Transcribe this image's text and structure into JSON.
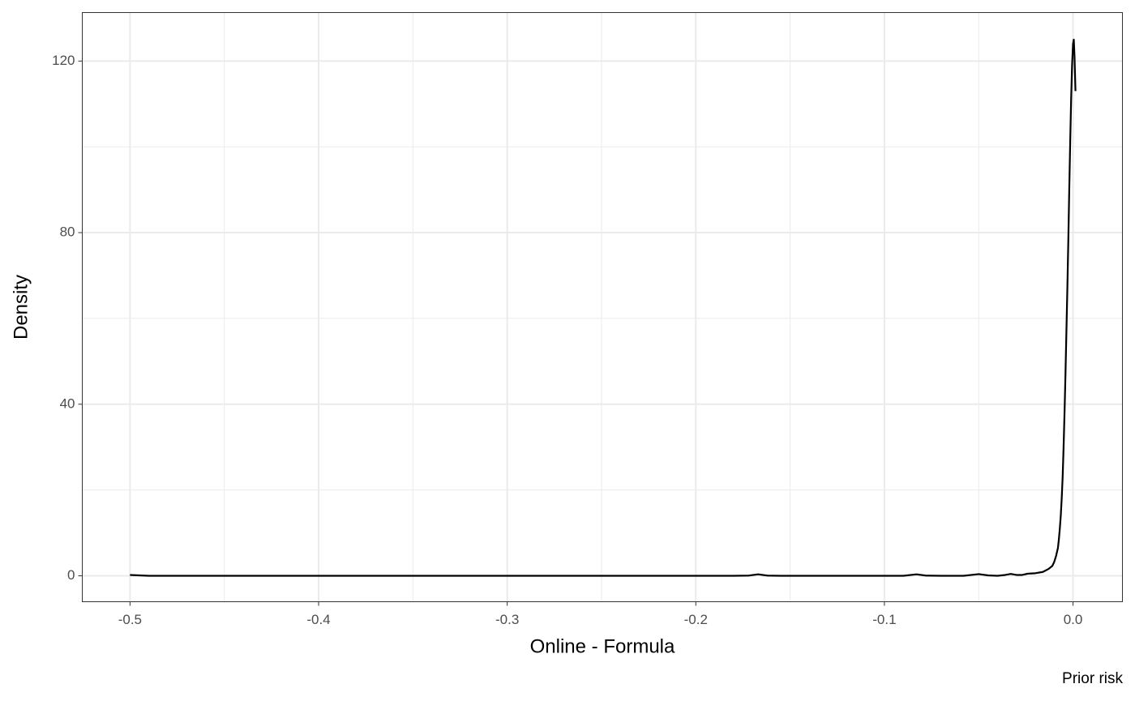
{
  "chart_data": {
    "type": "line",
    "x_label": "Online - Formula",
    "y_label": "Density",
    "caption": "Prior risk",
    "x": [
      -0.5,
      -0.49,
      -0.3,
      -0.18,
      -0.172,
      -0.167,
      -0.162,
      -0.155,
      -0.09,
      -0.088,
      -0.083,
      -0.078,
      -0.07,
      -0.058,
      -0.05,
      -0.045,
      -0.04,
      -0.036,
      -0.033,
      -0.03,
      -0.027,
      -0.024,
      -0.02,
      -0.016,
      -0.013,
      -0.011,
      -0.01,
      -0.009,
      -0.008,
      -0.0075,
      -0.007,
      -0.0065,
      -0.006,
      -0.0055,
      -0.005,
      -0.0045,
      -0.004,
      -0.0035,
      -0.003,
      -0.0025,
      -0.002,
      -0.0015,
      -0.001,
      -0.0005,
      0,
      0.0004,
      0.0008,
      0.0013
    ],
    "values": [
      0.2,
      0,
      0,
      0,
      0.05,
      0.35,
      0.05,
      0,
      0,
      0.1,
      0.35,
      0.05,
      0,
      0,
      0.4,
      0.1,
      0,
      0.2,
      0.45,
      0.2,
      0.2,
      0.5,
      0.6,
      0.9,
      1.6,
      2.3,
      3.2,
      4.6,
      6.5,
      8.5,
      11,
      14,
      18,
      23,
      30,
      38,
      47,
      57,
      67,
      78,
      90,
      101,
      111,
      119,
      124,
      125,
      121,
      113
    ],
    "color": "#000000",
    "xlim": [
      -0.5253,
      0.0262
    ],
    "ylim": [
      -6.04,
      131.3
    ],
    "xticks": [
      -0.5,
      -0.4,
      -0.3,
      -0.2,
      -0.1,
      {
        "value": 0,
        "label": "0.0"
      }
    ],
    "yticks": [
      0,
      40,
      80,
      120
    ],
    "grid": true
  }
}
